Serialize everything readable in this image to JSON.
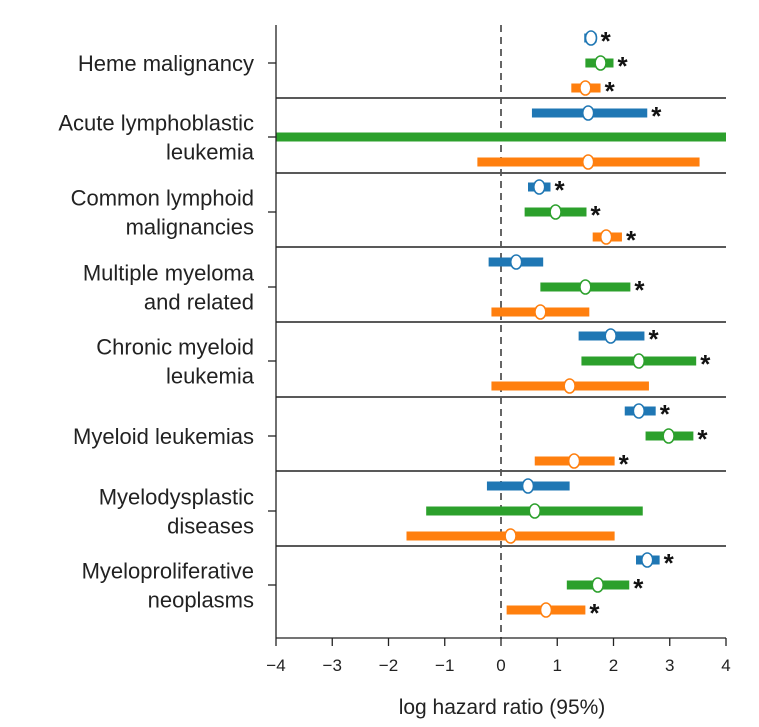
{
  "chart_data": {
    "type": "forest",
    "xlabel": "log hazard ratio (95%)",
    "xlim": [
      -4,
      4
    ],
    "xticks": [
      -4,
      -3,
      -2,
      -1,
      0,
      1,
      2,
      3,
      4
    ],
    "xtick_labels": [
      "−4",
      "−3",
      "−2",
      "−1",
      "0",
      "1",
      "2",
      "3",
      "4"
    ],
    "reference_line": 0,
    "series_colors": [
      "#1f77b4",
      "#2ca02c",
      "#ff7f0e"
    ],
    "significance_marker": "*",
    "groups": [
      {
        "label": [
          "Heme malignancy"
        ],
        "rows": [
          {
            "est": 1.6,
            "lo": 1.48,
            "hi": 1.7,
            "sig": true
          },
          {
            "est": 1.77,
            "lo": 1.5,
            "hi": 2.0,
            "sig": true
          },
          {
            "est": 1.5,
            "lo": 1.25,
            "hi": 1.77,
            "sig": true
          }
        ]
      },
      {
        "label": [
          "Acute lymphoblastic",
          "leukemia"
        ],
        "rows": [
          {
            "est": 1.55,
            "lo": 0.55,
            "hi": 2.6,
            "sig": true
          },
          {
            "est": null,
            "lo": -4.0,
            "hi": 4.0,
            "sig": false
          },
          {
            "est": 1.55,
            "lo": -0.42,
            "hi": 3.53,
            "sig": false
          }
        ]
      },
      {
        "label": [
          "Common lymphoid",
          "malignancies"
        ],
        "rows": [
          {
            "est": 0.68,
            "lo": 0.48,
            "hi": 0.88,
            "sig": true
          },
          {
            "est": 0.97,
            "lo": 0.42,
            "hi": 1.52,
            "sig": true
          },
          {
            "est": 1.87,
            "lo": 1.63,
            "hi": 2.15,
            "sig": true
          }
        ]
      },
      {
        "label": [
          "Multiple myeloma",
          "and related"
        ],
        "rows": [
          {
            "est": 0.27,
            "lo": -0.22,
            "hi": 0.75,
            "sig": false
          },
          {
            "est": 1.5,
            "lo": 0.7,
            "hi": 2.3,
            "sig": true
          },
          {
            "est": 0.7,
            "lo": -0.17,
            "hi": 1.57,
            "sig": false
          }
        ]
      },
      {
        "label": [
          "Chronic myeloid",
          "leukemia"
        ],
        "rows": [
          {
            "est": 1.95,
            "lo": 1.38,
            "hi": 2.55,
            "sig": true
          },
          {
            "est": 2.45,
            "lo": 1.43,
            "hi": 3.47,
            "sig": true
          },
          {
            "est": 1.22,
            "lo": -0.17,
            "hi": 2.63,
            "sig": false
          }
        ]
      },
      {
        "label": [
          "Myeloid leukemias"
        ],
        "rows": [
          {
            "est": 2.45,
            "lo": 2.2,
            "hi": 2.75,
            "sig": true
          },
          {
            "est": 2.98,
            "lo": 2.57,
            "hi": 3.42,
            "sig": true
          },
          {
            "est": 1.3,
            "lo": 0.6,
            "hi": 2.02,
            "sig": true
          }
        ]
      },
      {
        "label": [
          "Myelodysplastic",
          "diseases"
        ],
        "rows": [
          {
            "est": 0.48,
            "lo": -0.25,
            "hi": 1.22,
            "sig": false
          },
          {
            "est": 0.6,
            "lo": -1.33,
            "hi": 2.52,
            "sig": false
          },
          {
            "est": 0.17,
            "lo": -1.68,
            "hi": 2.02,
            "sig": false
          }
        ]
      },
      {
        "label": [
          "Myeloproliferative",
          "neoplasms"
        ],
        "rows": [
          {
            "est": 2.6,
            "lo": 2.4,
            "hi": 2.82,
            "sig": true
          },
          {
            "est": 1.72,
            "lo": 1.17,
            "hi": 2.28,
            "sig": true
          },
          {
            "est": 0.8,
            "lo": 0.1,
            "hi": 1.5,
            "sig": true
          }
        ]
      }
    ]
  }
}
